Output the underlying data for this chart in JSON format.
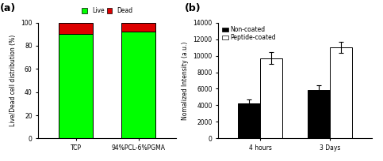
{
  "panel_a": {
    "categories": [
      "TCP",
      "94%PCL-6%PGMA"
    ],
    "live": [
      90,
      92
    ],
    "dead": [
      10,
      8
    ],
    "live_color": "#00FF00",
    "dead_color": "#DD0000",
    "ylabel": "Live/Dead cell distribution (%)",
    "ylim": [
      0,
      100
    ],
    "yticks": [
      0,
      20,
      40,
      60,
      80,
      100
    ],
    "legend_labels": [
      "Live",
      "Dead"
    ],
    "label": "(a)"
  },
  "panel_b": {
    "groups": [
      "4 hours",
      "3 Days"
    ],
    "non_coated": [
      4200,
      5900
    ],
    "non_coated_err": [
      500,
      500
    ],
    "peptide_coated": [
      9700,
      11000
    ],
    "peptide_coated_err": [
      700,
      700
    ],
    "bar_width": 0.32,
    "non_coated_color": "#000000",
    "peptide_coated_color": "#FFFFFF",
    "ylabel": "Nomalized Intensity (a.u.)",
    "ylim": [
      0,
      14000
    ],
    "yticks": [
      0,
      2000,
      4000,
      6000,
      8000,
      10000,
      12000,
      14000
    ],
    "legend_labels": [
      "Non-coated",
      "Peptide-coated"
    ],
    "label": "(b)"
  }
}
